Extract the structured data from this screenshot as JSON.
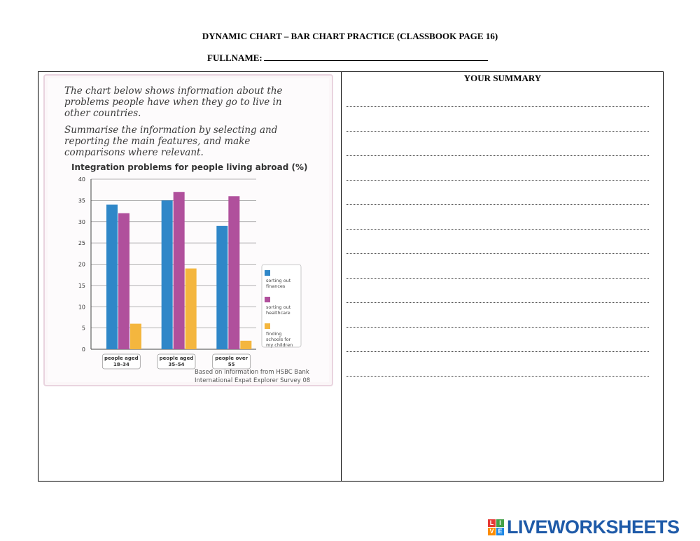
{
  "header": {
    "title": "DYNAMIC CHART – BAR CHART PRACTICE (CLASSBOOK PAGE 16)",
    "fullname_label": "FULLNAME:"
  },
  "task": {
    "paragraph1": "The chart below shows information about the problems people have when they go to live in other countries.",
    "paragraph2": "Summarise the information by selecting and reporting the main features, and make comparisons where relevant.",
    "source_line1": "Based on information from HSBC Bank",
    "source_line2": "International Expat Explorer Survey 08"
  },
  "chart_data": {
    "type": "bar",
    "title": "Integration problems for people living abroad (%)",
    "categories": [
      [
        "people aged",
        "18–34"
      ],
      [
        "people aged",
        "35–54"
      ],
      [
        "people over",
        "55"
      ]
    ],
    "series": [
      {
        "name": [
          "sorting out",
          "finances"
        ],
        "color": "#2f87c8",
        "values": [
          34,
          35,
          29
        ]
      },
      {
        "name": [
          "sorting out",
          "healthcare"
        ],
        "color": "#b0509c",
        "values": [
          32,
          37,
          36
        ]
      },
      {
        "name": [
          "finding",
          "schools for",
          "my children"
        ],
        "color": "#f4b63e",
        "values": [
          6,
          19,
          2
        ]
      }
    ],
    "ylim": [
      0,
      40
    ],
    "yticks": [
      0,
      5,
      10,
      15,
      20,
      25,
      30,
      35,
      40
    ],
    "grid": true,
    "legend_position": "right"
  },
  "summary": {
    "title": "YOUR SUMMARY",
    "line_count": 12
  },
  "footer": {
    "brand_icon_letters": [
      "L",
      "I",
      "V",
      "E"
    ],
    "brand_icon_colors": [
      "#e53935",
      "#43a047",
      "#fb8c00",
      "#1e88e5"
    ],
    "brand_name": "LIVEWORKSHEETS"
  }
}
